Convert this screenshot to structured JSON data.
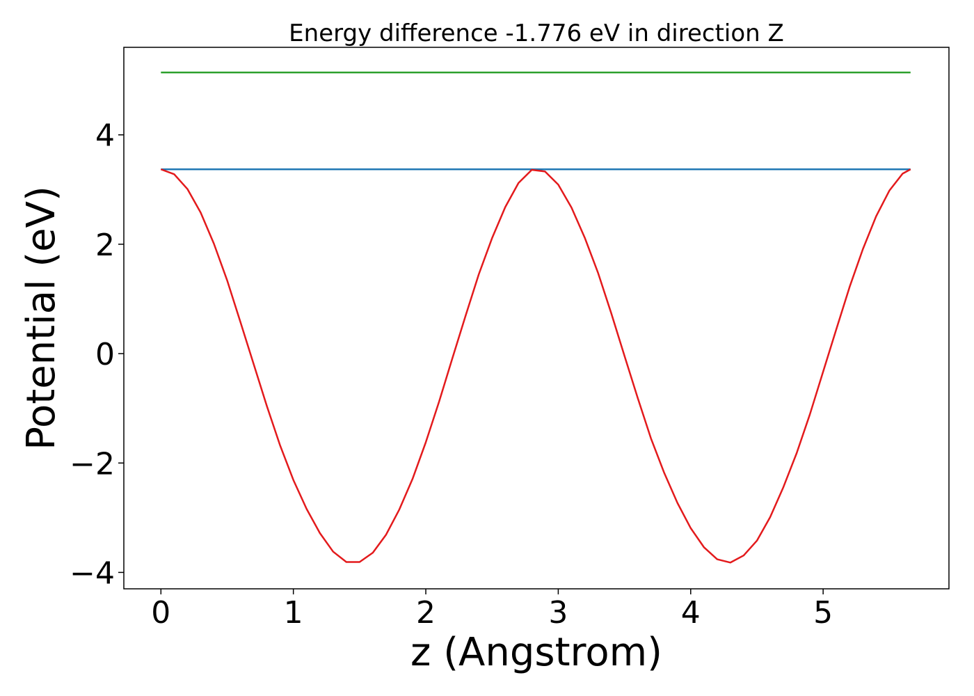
{
  "chart_data": {
    "type": "line",
    "title": "Energy difference -1.776 eV in direction Z",
    "xlabel": "z (Angstrom)",
    "ylabel": "Potential (eV)",
    "xlim": [
      -0.28,
      5.95
    ],
    "ylim": [
      -4.3,
      5.6
    ],
    "xticks": [
      0,
      1,
      2,
      3,
      4,
      5
    ],
    "xtick_labels": [
      "0",
      "1",
      "2",
      "3",
      "4",
      "5"
    ],
    "yticks": [
      -4,
      -2,
      0,
      2,
      4
    ],
    "ytick_labels": [
      "−4",
      "−2",
      "0",
      "2",
      "4"
    ],
    "grid": false,
    "series": [
      {
        "color": "#1f77b4",
        "x": [
          0,
          5.66
        ],
        "y": [
          3.37,
          3.37
        ]
      },
      {
        "color": "#2ca02c",
        "x": [
          0,
          5.66
        ],
        "y": [
          5.14,
          5.14
        ]
      },
      {
        "color": "#e31a1c",
        "x": [
          0,
          0.1,
          0.2,
          0.3,
          0.4,
          0.5,
          0.6,
          0.7,
          0.8,
          0.9,
          1.0,
          1.1,
          1.2,
          1.3,
          1.4,
          1.5,
          1.6,
          1.7,
          1.8,
          1.9,
          2.0,
          2.1,
          2.2,
          2.3,
          2.4,
          2.5,
          2.6,
          2.7,
          2.8,
          2.9,
          3.0,
          3.1,
          3.2,
          3.3,
          3.4,
          3.5,
          3.6,
          3.7,
          3.8,
          3.9,
          4.0,
          4.1,
          4.2,
          4.3,
          4.4,
          4.5,
          4.6,
          4.7,
          4.8,
          4.9,
          5.0,
          5.1,
          5.2,
          5.3,
          5.4,
          5.5,
          5.6,
          5.66
        ],
        "y": [
          3.37,
          3.28,
          3.01,
          2.58,
          2.01,
          1.34,
          0.58,
          -0.19,
          -0.96,
          -1.68,
          -2.31,
          -2.84,
          -3.28,
          -3.62,
          -3.81,
          -3.81,
          -3.64,
          -3.31,
          -2.85,
          -2.29,
          -1.62,
          -0.88,
          -0.09,
          0.69,
          1.45,
          2.11,
          2.68,
          3.12,
          3.36,
          3.33,
          3.09,
          2.67,
          2.12,
          1.48,
          0.74,
          -0.04,
          -0.81,
          -1.55,
          -2.18,
          -2.73,
          -3.19,
          -3.54,
          -3.76,
          -3.82,
          -3.69,
          -3.42,
          -2.99,
          -2.44,
          -1.82,
          -1.11,
          -0.33,
          0.45,
          1.22,
          1.91,
          2.51,
          2.98,
          3.29,
          3.37
        ]
      }
    ]
  }
}
